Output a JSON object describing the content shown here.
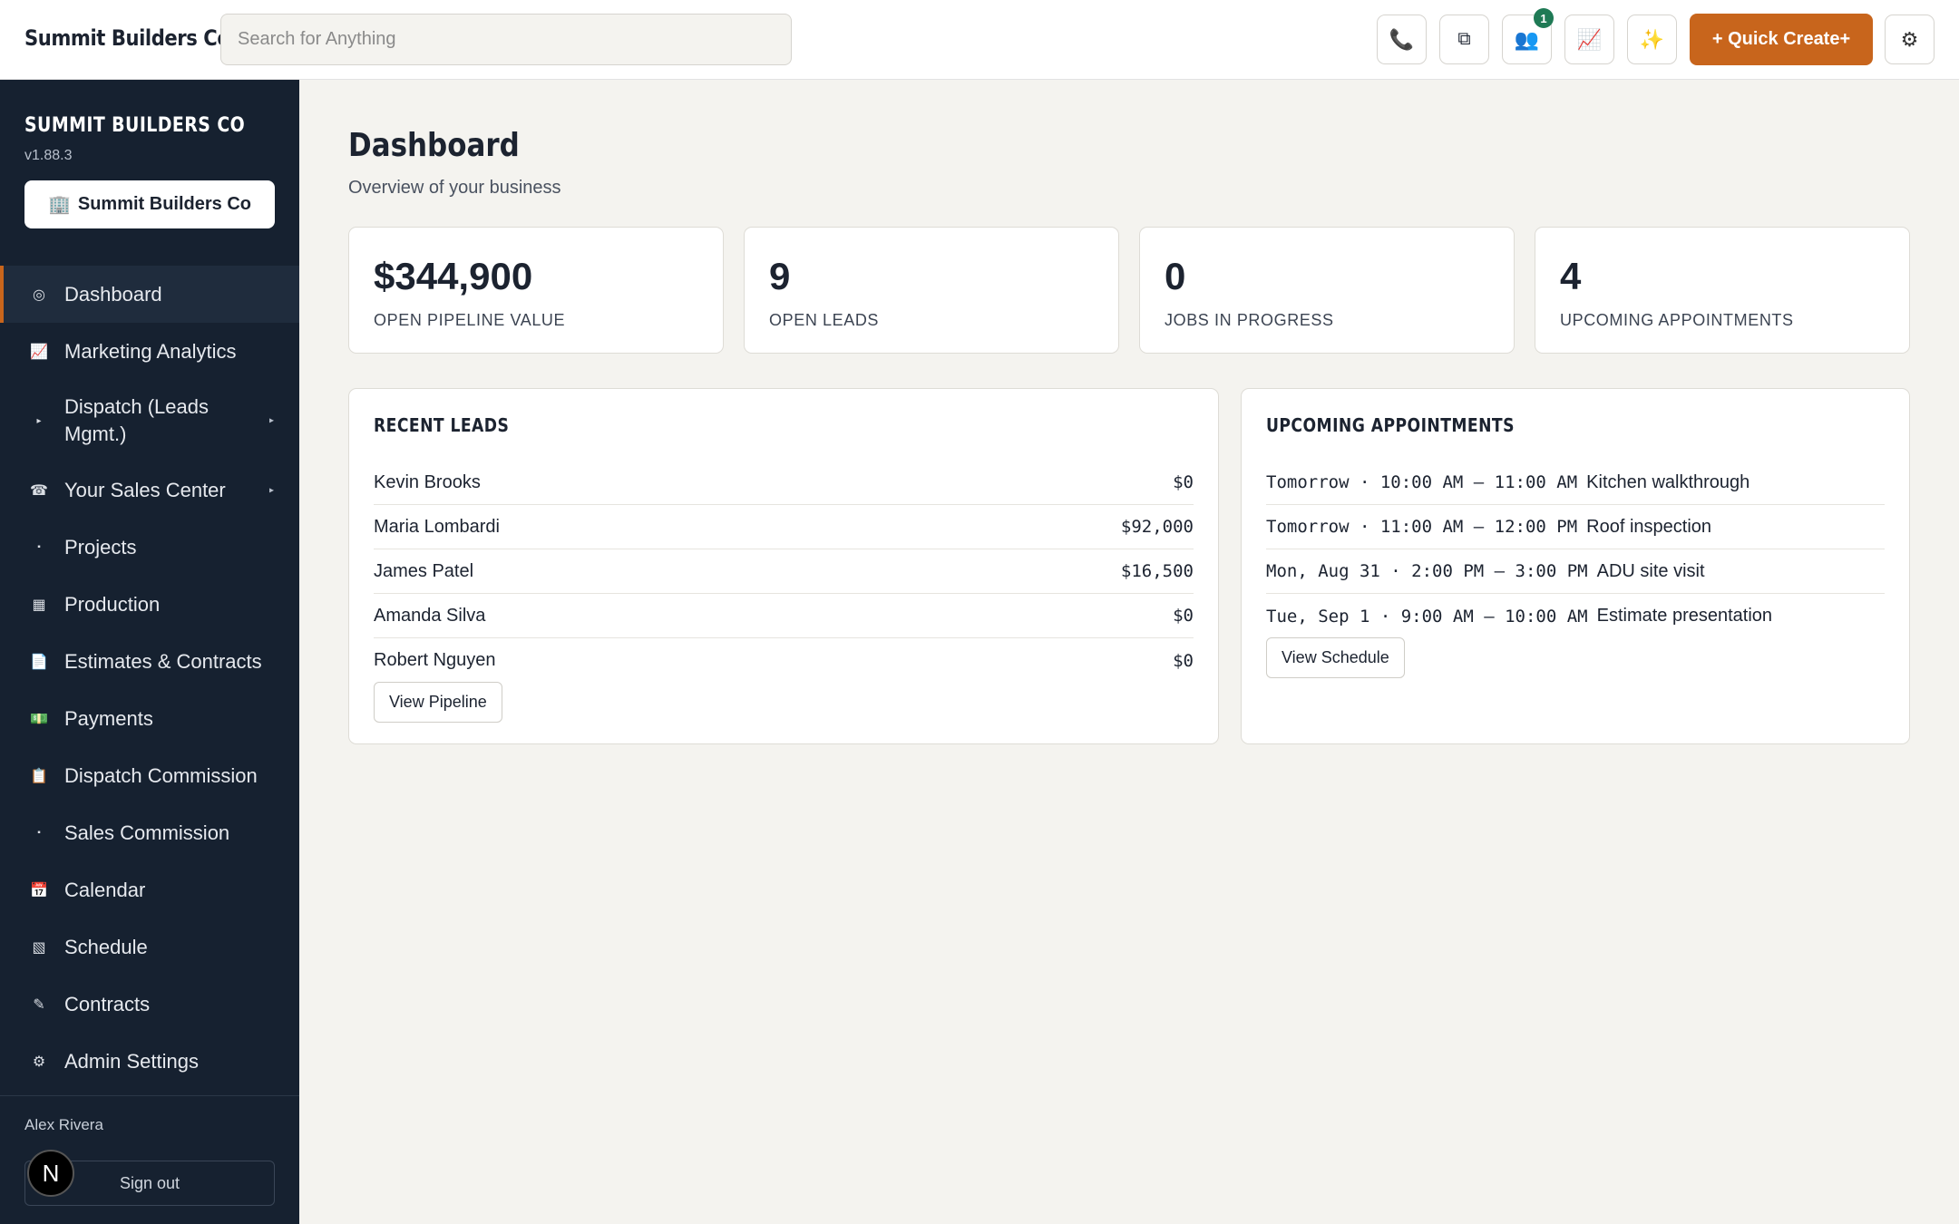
{
  "header": {
    "brand": "Summit Builders Co",
    "search_placeholder": "Search for Anything",
    "buttons": [
      {
        "name": "phone-icon",
        "glyph": "📞"
      },
      {
        "name": "windows-icon",
        "glyph": "⧉"
      },
      {
        "name": "users-icon",
        "glyph": "👥",
        "badge": "1"
      },
      {
        "name": "chart-icon",
        "glyph": "📈"
      },
      {
        "name": "sparkle-icon",
        "glyph": "✨"
      }
    ],
    "quick_create_label": "+ Quick Create+",
    "settings_glyph": "⚙"
  },
  "sidebar": {
    "title": "SUMMIT BUILDERS CO",
    "version": "v1.88.3",
    "company_button": {
      "icon": "🏢",
      "label": "Summit Builders Co"
    },
    "items": [
      {
        "icon": "◎",
        "label": "Dashboard"
      },
      {
        "icon": "📈",
        "label": "Marketing Analytics"
      },
      {
        "icon": "▸",
        "label": "Dispatch (Leads Mgmt.)",
        "caret": "▸"
      },
      {
        "icon": "☎",
        "label": "Your Sales Center",
        "caret": "▸"
      },
      {
        "icon": "▪",
        "label": "Projects"
      },
      {
        "icon": "▦",
        "label": "Production"
      },
      {
        "icon": "📄",
        "label": "Estimates & Contracts"
      },
      {
        "icon": "💵",
        "label": "Payments"
      },
      {
        "icon": "📋",
        "label": "Dispatch Commission"
      },
      {
        "icon": "▪",
        "label": "Sales Commission"
      },
      {
        "icon": "📅",
        "label": "Calendar"
      },
      {
        "icon": "▧",
        "label": "Schedule"
      },
      {
        "icon": "✎",
        "label": "Contracts"
      },
      {
        "icon": "⚙",
        "label": "Admin Settings"
      }
    ],
    "user_name": "Alex Rivera",
    "sign_out_label": "Sign out",
    "avatar_letter": "N"
  },
  "main": {
    "title": "Dashboard",
    "subtitle": "Overview of your business",
    "stats": [
      {
        "value": "$344,900",
        "label": "OPEN PIPELINE VALUE"
      },
      {
        "value": "9",
        "label": "OPEN LEADS"
      },
      {
        "value": "0",
        "label": "JOBS IN PROGRESS"
      },
      {
        "value": "4",
        "label": "UPCOMING APPOINTMENTS"
      }
    ],
    "recent_leads": {
      "title": "RECENT LEADS",
      "rows": [
        {
          "name": "Kevin Brooks",
          "value": "$0"
        },
        {
          "name": "Maria Lombardi",
          "value": "$92,000"
        },
        {
          "name": "James Patel",
          "value": "$16,500"
        },
        {
          "name": "Amanda Silva",
          "value": "$0"
        },
        {
          "name": "Robert Nguyen",
          "value": "$0"
        }
      ],
      "button_label": "View Pipeline"
    },
    "upcoming_appointments": {
      "title": "UPCOMING APPOINTMENTS",
      "rows": [
        {
          "when": "Tomorrow · 10:00 AM – 11:00 AM",
          "what": "Kitchen walkthrough"
        },
        {
          "when": "Tomorrow · 11:00 AM – 12:00 PM",
          "what": "Roof inspection"
        },
        {
          "when": "Mon, Aug 31 · 2:00 PM – 3:00 PM",
          "what": "ADU site visit"
        },
        {
          "when": "Tue, Sep 1 · 9:00 AM – 10:00 AM",
          "what": "Estimate presentation"
        }
      ],
      "button_label": "View Schedule"
    }
  }
}
